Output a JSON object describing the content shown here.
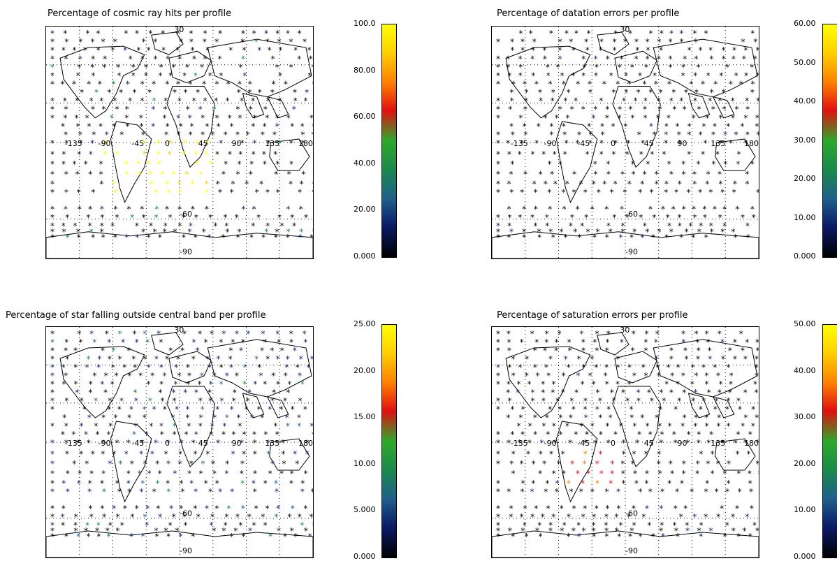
{
  "panels": [
    {
      "title": "Percentage of cosmic ray hits per profile",
      "colorbar_ticks": [
        "100.0",
        "80.00",
        "60.00",
        "40.00",
        "20.00",
        "0.000"
      ],
      "max": 100
    },
    {
      "title": "Percentage of datation errors per profile",
      "colorbar_ticks": [
        "60.00",
        "50.00",
        "40.00",
        "30.00",
        "20.00",
        "10.00",
        "0.000"
      ],
      "max": 60
    },
    {
      "title": "Percentage of star falling outside central band per profile",
      "colorbar_ticks": [
        "25.00",
        "20.00",
        "15.00",
        "10.00",
        "5.000",
        "0.000"
      ],
      "max": 25
    },
    {
      "title": "Percentage of saturation errors per profile",
      "colorbar_ticks": [
        "50.00",
        "40.00",
        "30.00",
        "20.00",
        "10.00",
        "0.000"
      ],
      "max": 50
    }
  ],
  "map_labels": {
    "lat_top": "30",
    "lat_mid": "-60",
    "lat_bottom": "-90",
    "lon": [
      "-135",
      "-90",
      "-45",
      "0",
      "45",
      "90",
      "135",
      "180"
    ]
  },
  "colormap": [
    "#000000",
    "#0b1a66",
    "#1f5f8a",
    "#1a8a4a",
    "#2ea82a",
    "#e01010",
    "#ff7f00",
    "#ffd000",
    "#ffff00"
  ],
  "highlights": {
    "p0": "yellow cluster over South Atlantic Anomaly",
    "p3": "orange cluster over South America"
  }
}
